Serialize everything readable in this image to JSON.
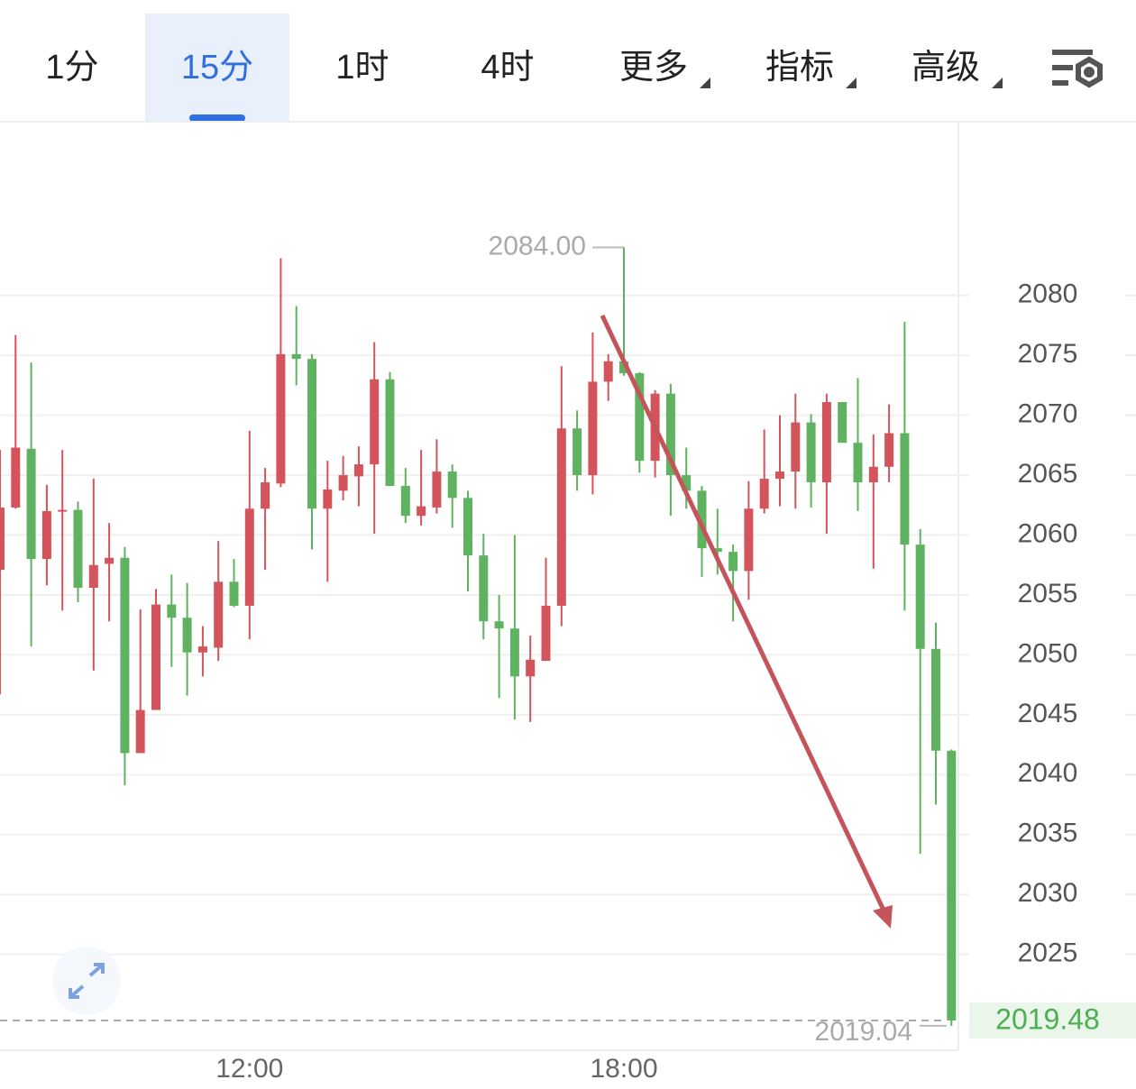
{
  "tabs": [
    "1分",
    "15分",
    "1时",
    "4时",
    "更多",
    "指标",
    "高级"
  ],
  "chart_data": {
    "type": "candlestick",
    "categories": [
      null,
      null,
      null,
      null,
      null,
      null,
      null,
      null,
      null,
      null,
      null,
      null,
      null,
      null,
      null,
      null,
      "12:00",
      null,
      null,
      null,
      null,
      null,
      null,
      null,
      null,
      null,
      null,
      null,
      null,
      null,
      null,
      null,
      null,
      null,
      null,
      null,
      null,
      null,
      null,
      null,
      "18:00",
      null,
      null,
      null,
      null,
      null,
      null,
      null,
      null,
      null,
      null,
      null,
      null,
      null,
      null,
      null,
      null,
      null,
      null,
      null,
      null,
      null
    ],
    "open": [
      2057.1,
      2062.3,
      2067.2,
      2058.0,
      2062.0,
      2062.1,
      2055.6,
      2057.6,
      2058.1,
      2041.8,
      2045.4,
      2054.2,
      2053.1,
      2050.2,
      2050.6,
      2056.1,
      2054.1,
      2062.2,
      2064.3,
      2075.1,
      2074.7,
      2062.2,
      2063.7,
      2064.9,
      2065.9,
      2073.0,
      2064.1,
      2061.6,
      2062.3,
      2065.3,
      2063.1,
      2058.3,
      2052.8,
      2052.2,
      2048.2,
      2049.5,
      2054.1,
      2068.9,
      2065.0,
      2072.8,
      2074.5,
      2073.5,
      2066.2,
      2071.8,
      2065.0,
      2063.7,
      2058.9,
      2058.6,
      2057.0,
      2062.2,
      2064.7,
      2065.3,
      2069.4,
      2064.4,
      2071.1,
      2067.7,
      2064.4,
      2065.7,
      2068.5,
      2059.2,
      2050.5,
      2042.0
    ],
    "high": [
      2067.1,
      2076.7,
      2074.4,
      2064.2,
      2067.1,
      2062.8,
      2064.7,
      2061.0,
      2059.0,
      2053.8,
      2055.5,
      2056.7,
      2056.0,
      2052.4,
      2059.5,
      2058.0,
      2068.7,
      2065.6,
      2083.1,
      2079.1,
      2075.1,
      2066.2,
      2066.6,
      2067.4,
      2076.1,
      2073.6,
      2065.6,
      2067.1,
      2068.0,
      2065.9,
      2063.7,
      2060.1,
      2055.0,
      2060.0,
      2051.6,
      2058.1,
      2074.1,
      2070.4,
      2076.9,
      2075.1,
      2084.0,
      2073.6,
      2072.1,
      2072.6,
      2067.3,
      2064.1,
      2062.2,
      2059.2,
      2064.5,
      2068.8,
      2070.0,
      2071.8,
      2070.1,
      2071.8,
      2071.1,
      2073.1,
      2068.4,
      2070.9,
      2077.8,
      2060.5,
      2052.7,
      2042.1
    ],
    "low": [
      2046.7,
      2062.2,
      2050.7,
      2055.8,
      2053.7,
      2054.4,
      2048.7,
      2052.8,
      2039.1,
      2041.8,
      2045.4,
      2049.0,
      2046.6,
      2048.2,
      2049.5,
      2054.0,
      2051.3,
      2057.1,
      2064.0,
      2072.5,
      2058.8,
      2056.1,
      2062.9,
      2062.4,
      2060.1,
      2064.1,
      2061.0,
      2060.8,
      2061.8,
      2060.6,
      2055.3,
      2051.3,
      2046.4,
      2044.6,
      2044.4,
      2049.5,
      2052.4,
      2063.7,
      2063.4,
      2071.2,
      2073.3,
      2065.2,
      2064.8,
      2061.6,
      2062.2,
      2056.5,
      2056.7,
      2052.8,
      2054.6,
      2061.8,
      2062.4,
      2062.2,
      2062.3,
      2060.1,
      2067.7,
      2062.0,
      2057.2,
      2064.4,
      2053.7,
      2033.4,
      2037.5,
      2019.04
    ],
    "close": [
      2062.3,
      2067.3,
      2058.0,
      2062.0,
      2062.1,
      2055.6,
      2057.5,
      2058.1,
      2041.8,
      2045.4,
      2054.2,
      2053.1,
      2050.2,
      2050.7,
      2056.1,
      2054.1,
      2062.2,
      2064.4,
      2075.1,
      2074.7,
      2062.2,
      2063.8,
      2065.0,
      2065.9,
      2073.0,
      2064.1,
      2061.6,
      2062.4,
      2065.3,
      2063.1,
      2058.3,
      2052.8,
      2052.2,
      2048.2,
      2049.6,
      2054.1,
      2068.9,
      2065.0,
      2072.8,
      2074.5,
      2073.5,
      2066.2,
      2071.8,
      2065.0,
      2063.7,
      2058.9,
      2058.6,
      2057.0,
      2062.2,
      2064.7,
      2065.3,
      2069.4,
      2064.4,
      2071.1,
      2067.7,
      2064.4,
      2065.7,
      2068.5,
      2059.2,
      2050.5,
      2042.0,
      2019.48
    ],
    "up_color": "#d4545c",
    "down_color": "#5fb360",
    "ylim": [
      2017.0,
      2094.5
    ],
    "yticks": [
      2025,
      2030,
      2035,
      2040,
      2045,
      2050,
      2055,
      2060,
      2065,
      2070,
      2075,
      2080
    ],
    "grid": true,
    "high_label": {
      "value": 2084,
      "label": "2084.00"
    },
    "low_label": 2019.04,
    "last_price": 2019.48
  }
}
